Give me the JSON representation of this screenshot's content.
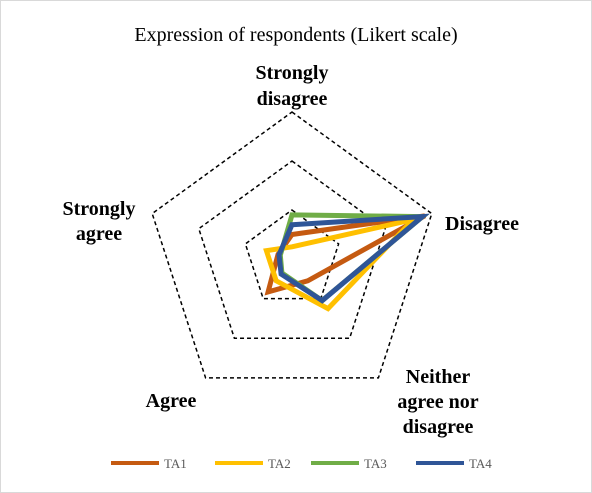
{
  "chart_data": {
    "type": "radar",
    "title": "Expression of respondents (Likert scale)",
    "axes": [
      "Strongly disagree",
      "Disagree",
      "Neither agree nor disagree",
      "Agree",
      "Strongly agree"
    ],
    "axis_label_lines": [
      [
        "Strongly",
        "disagree"
      ],
      [
        "Disagree"
      ],
      [
        "Neither",
        "agree nor",
        "disagree"
      ],
      [
        "Agree"
      ],
      [
        "Strongly",
        "agree"
      ]
    ],
    "rmax": 3,
    "grid_rings": [
      1,
      2,
      3
    ],
    "gridlines": "dashed",
    "legend_position": "bottom",
    "series": [
      {
        "name": "TA1",
        "color": "#C55A11",
        "values": [
          0.5,
          2.85,
          0.55,
          0.83,
          0.3
        ]
      },
      {
        "name": "TA2",
        "color": "#FFC000",
        "values": [
          0.25,
          2.6,
          1.25,
          0.55,
          0.55
        ]
      },
      {
        "name": "TA3",
        "color": "#70AD47",
        "values": [
          0.9,
          2.8,
          1.05,
          0.35,
          0.25
        ]
      },
      {
        "name": "TA4",
        "color": "#2F5597",
        "values": [
          0.7,
          2.8,
          1.05,
          0.38,
          0.28
        ]
      }
    ]
  }
}
